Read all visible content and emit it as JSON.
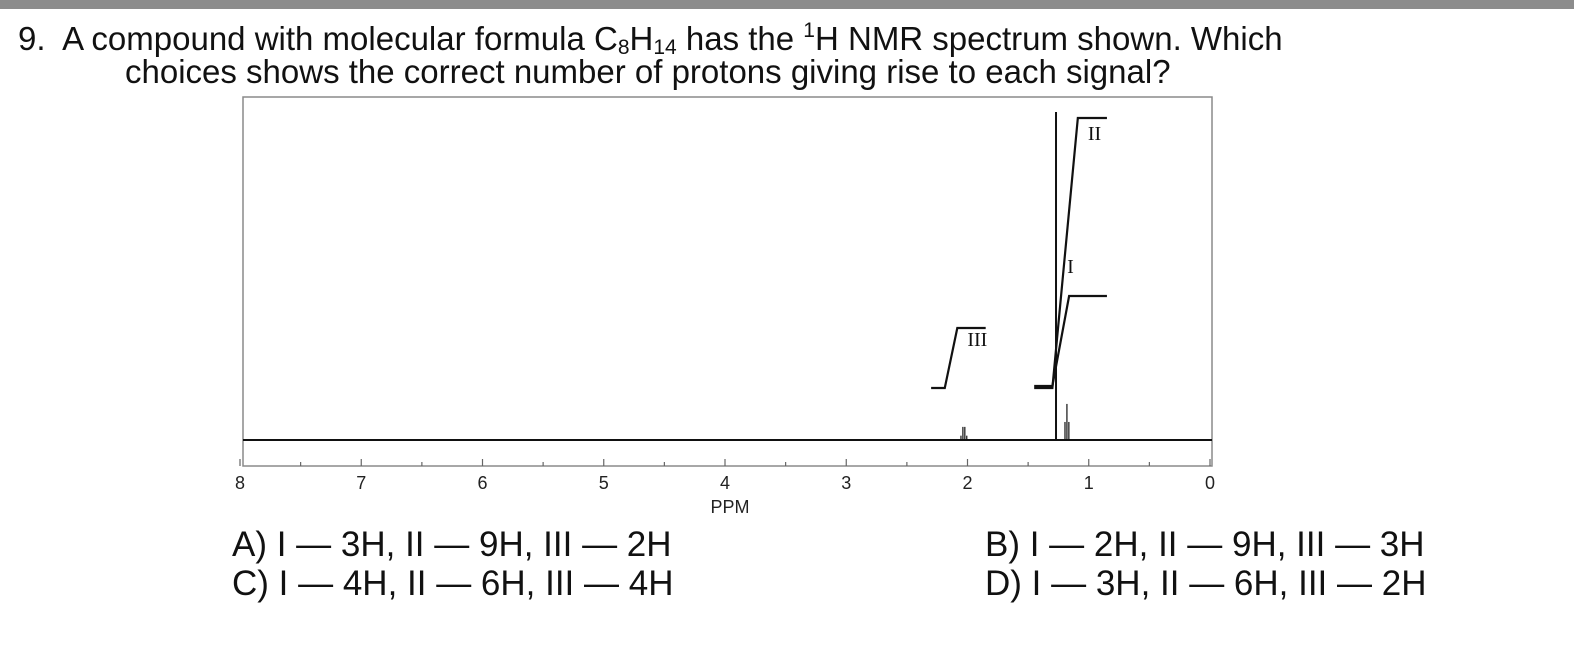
{
  "question": {
    "number": "9.",
    "line1_a": "A compound with molecular formula C",
    "line1_sub1": "8",
    "line1_b": "H",
    "line1_sub2": "14",
    "line1_c": " has the ",
    "line1_sup": "1",
    "line1_d": "H NMR spectrum shown. Which",
    "line2": "choices shows the correct number of protons giving rise to each signal?"
  },
  "chart_data": {
    "type": "line",
    "title": "",
    "xlabel": "PPM",
    "ylabel": "",
    "xlim": [
      8,
      0
    ],
    "x_reversed": true,
    "x_ticks": [
      "8",
      "7",
      "6",
      "5",
      "4",
      "3",
      "2",
      "1",
      "0"
    ],
    "grid": false,
    "peaks": [
      {
        "ppm": 2.03,
        "intensity": 0.04,
        "multiplicity": "quartet"
      },
      {
        "ppm": 1.27,
        "intensity": 1.0,
        "multiplicity": "singlet"
      },
      {
        "ppm": 1.18,
        "intensity": 0.11,
        "multiplicity": "triplet"
      }
    ],
    "integrations": [
      {
        "label": "III",
        "ppm_start": 2.3,
        "ppm_end": 1.85,
        "relative_height": 2
      },
      {
        "label": "II",
        "ppm_start": 1.45,
        "ppm_end": 0.85,
        "relative_height": 9
      },
      {
        "label": "I",
        "ppm_start": 1.45,
        "ppm_end": 0.85,
        "relative_height": 3
      }
    ]
  },
  "choices": {
    "A": "A) I — 3H, II — 9H, III — 2H",
    "B": "B) I — 2H, II — 9H, III — 3H",
    "C": "C) I — 4H, II — 6H, III — 4H",
    "D": "D) I — 3H, II — 6H, III — 2H"
  }
}
